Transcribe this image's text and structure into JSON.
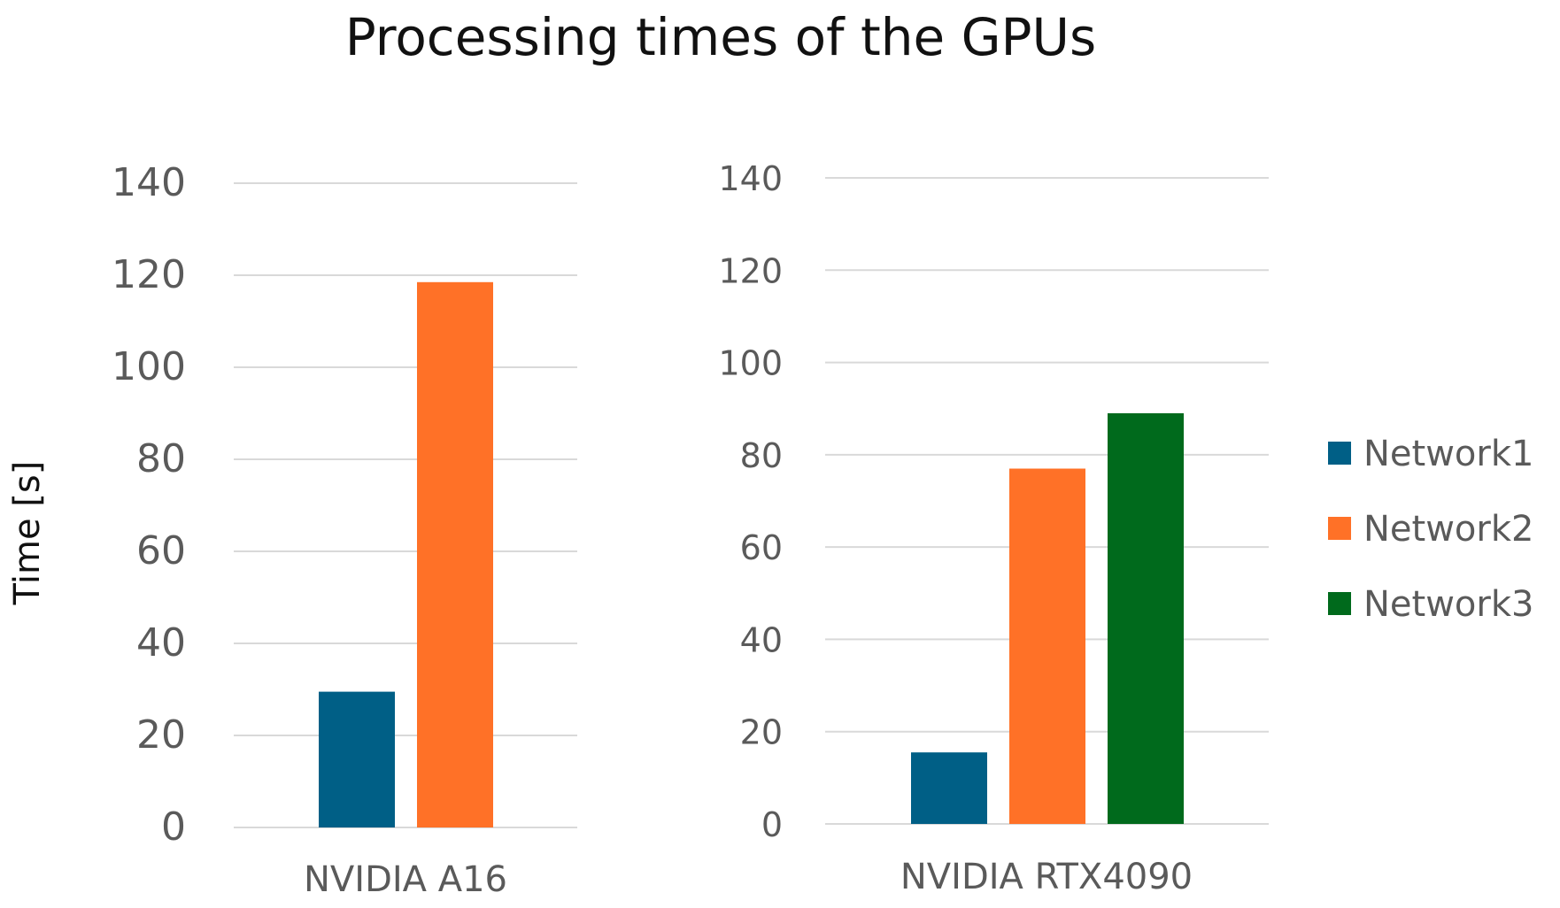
{
  "chart_data": {
    "type": "bar",
    "title": "Processing times of the GPUs",
    "ylabel": "Time [s]",
    "xlabel": "",
    "ylim": [
      0,
      140
    ],
    "yticks": [
      "0",
      "20",
      "40",
      "60",
      "80",
      "100",
      "120",
      "140"
    ],
    "legend_position": "right",
    "series": [
      {
        "name": "Network1",
        "color": "#005f86"
      },
      {
        "name": "Network2",
        "color": "#ff7127"
      },
      {
        "name": "Network3",
        "color": "#006a1c"
      }
    ],
    "panels": [
      {
        "category": "NVIDIA A16",
        "values": [
          {
            "series": "Network1",
            "value": 29.5
          },
          {
            "series": "Network2",
            "value": 118.5
          }
        ]
      },
      {
        "category": "NVIDIA RTX4090",
        "values": [
          {
            "series": "Network1",
            "value": 15.5
          },
          {
            "series": "Network2",
            "value": 77
          },
          {
            "series": "Network3",
            "value": 89
          }
        ]
      }
    ]
  }
}
